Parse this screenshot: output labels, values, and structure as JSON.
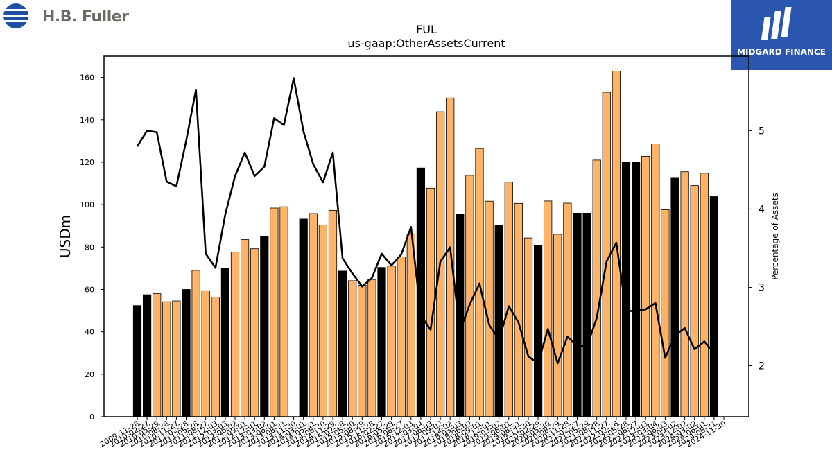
{
  "brand": {
    "company_name": "H.B. Fuller",
    "partner_name": "MIDGARD FINANCE"
  },
  "chart_data": {
    "type": "bar",
    "title": "FUL",
    "subtitle": "us-gaap:OtherAssetsCurrent",
    "ylabel": "USDm",
    "y2label": "Percentage of Assets",
    "ylim": [
      0,
      170
    ],
    "y2lim": [
      1.35,
      5.95
    ],
    "yticks": [
      0,
      20,
      40,
      60,
      80,
      100,
      120,
      140,
      160
    ],
    "y2ticks": [
      2,
      3,
      4,
      5
    ],
    "grid": false,
    "colors": {
      "annual": "#000000",
      "quarterly": "#ffb366",
      "line": "#000000"
    },
    "categories": [
      "2009-11-28",
      "2010-02-27",
      "2010-05-29",
      "2010-08-28",
      "2010-11-27",
      "2011-02-26",
      "2011-05-28",
      "2011-08-27",
      "2011-12-03",
      "2012-03-03",
      "2012-06-02",
      "2012-09-01",
      "2012-12-01",
      "2013-03-02",
      "2013-06-01",
      "2013-08-31",
      "2013-11-30",
      "2014-03-01",
      "2014-05-31",
      "2014-08-30",
      "2014-11-29",
      "2015-02-28",
      "2015-05-30",
      "2015-08-29",
      "2015-11-28",
      "2016-02-27",
      "2016-05-28",
      "2016-08-27",
      "2016-12-03",
      "2017-03-04",
      "2017-06-03",
      "2017-09-02",
      "2017-12-02",
      "2018-03-03",
      "2018-06-02",
      "2018-09-01",
      "2018-12-01",
      "2019-03-02",
      "2019-06-01",
      "2019-08-31",
      "2019-11-30",
      "2020-02-29",
      "2020-05-30",
      "2020-08-29",
      "2020-11-28",
      "2021-02-27",
      "2021-05-29",
      "2021-08-28",
      "2021-11-27",
      "2022-02-26",
      "2022-05-28",
      "2022-08-27",
      "2022-12-03",
      "2023-03-04",
      "2023-06-03",
      "2023-09-02",
      "2023-12-02",
      "2024-03-02",
      "2024-06-01",
      "2024-08-31",
      "2024-11-30"
    ],
    "tick_labels": [
      "2009-11-28",
      "2010-02-27",
      "2010-05-29",
      "2010-08-28",
      "2010-11-27",
      "2011-02-26",
      "2011-05-28",
      "2011-08-27",
      "2011-12-03",
      "2012-03-03",
      "2012-06-02",
      "2012-09-01",
      "2012-12-01",
      "2013-03-02",
      "2013-06-01",
      "2013-08-31",
      "2013-11-30",
      "2014-03-01",
      "2014-05-31",
      "2014-08-30",
      "2014-11-29",
      "2015-02-28",
      "2015-05-30",
      "2015-08-29",
      "2015-11-28",
      "2016-02-27",
      "2016-05-28",
      "2016-08-27",
      "2016-12-03",
      "2017-03-04",
      "2017-06-03",
      "2017-09-02",
      "2017-12-02",
      "2018-03-03",
      "2018-06-02",
      "2018-09-01",
      "2018-12-01",
      "2019-03-02",
      "2019-06-01",
      "2019-08-31",
      "2019-11-30",
      "2020-02-29",
      "2020-05-30",
      "2020-08-29",
      "2020-11-28",
      "2021-02-27",
      "2021-05-29",
      "2021-08-28",
      "2021-11-27",
      "2022-02-26",
      "2022-05-28",
      "2022-08-27",
      "2022-12-03",
      "2023-03-04",
      "2023-06-03",
      "2023-09-02",
      "2023-12-02",
      "2024-03-02",
      "2024-06-01",
      "2024-08-31",
      "2024-11-30"
    ],
    "series": [
      {
        "values": [
          52.4,
          57.5,
          58.0,
          54.2,
          54.6,
          60.0,
          69.0,
          59.4,
          56.4,
          70.0,
          77.6,
          83.5,
          79.2,
          85.0,
          98.4,
          99.0,
          null,
          93.2,
          95.8,
          90.4,
          97.3,
          68.7,
          64.1,
          62.0,
          64.7,
          70.4,
          71.0,
          75.4,
          86.2,
          117.3,
          107.8,
          143.8,
          150.3,
          95.4,
          113.8,
          126.5,
          101.6,
          90.4,
          110.6,
          100.6,
          84.3,
          80.9,
          101.7,
          86.0,
          100.7,
          96.0,
          96.0,
          121.0,
          153.0,
          163.0,
          120.0,
          120.0,
          122.8,
          128.6,
          97.6,
          112.5,
          115.5,
          109.0,
          114.8,
          103.8,
          null
        ],
        "kind": [
          "annual",
          "annual",
          "quarterly",
          "quarterly",
          "quarterly",
          "annual",
          "quarterly",
          "quarterly",
          "quarterly",
          "annual",
          "quarterly",
          "quarterly",
          "quarterly",
          "annual",
          "quarterly",
          "quarterly",
          "annual",
          "annual",
          "quarterly",
          "quarterly",
          "quarterly",
          "annual",
          "quarterly",
          "quarterly",
          "quarterly",
          "annual",
          "quarterly",
          "quarterly",
          "quarterly",
          "annual",
          "quarterly",
          "quarterly",
          "quarterly",
          "annual",
          "quarterly",
          "quarterly",
          "quarterly",
          "annual",
          "quarterly",
          "quarterly",
          "quarterly",
          "annual",
          "quarterly",
          "quarterly",
          "quarterly",
          "annual",
          "annual",
          "quarterly",
          "quarterly",
          "quarterly",
          "annual",
          "annual",
          "quarterly",
          "quarterly",
          "quarterly",
          "annual",
          "quarterly",
          "quarterly",
          "quarterly",
          "annual",
          "annual"
        ]
      },
      {
        "axis": "y2",
        "type": "line",
        "values": [
          4.8,
          5.0,
          4.98,
          4.35,
          4.29,
          4.87,
          5.52,
          3.43,
          3.25,
          3.93,
          4.42,
          4.72,
          4.42,
          4.54,
          5.16,
          5.07,
          5.67,
          4.99,
          4.57,
          4.34,
          4.72,
          3.37,
          3.18,
          3.01,
          3.12,
          3.43,
          3.28,
          3.42,
          3.77,
          2.64,
          2.46,
          3.33,
          3.51,
          2.44,
          2.78,
          3.05,
          2.52,
          2.33,
          2.76,
          2.55,
          2.12,
          2.03,
          2.47,
          2.03,
          2.37,
          2.26,
          2.25,
          2.61,
          3.33,
          3.57,
          2.7,
          2.7,
          2.72,
          2.8,
          2.1,
          2.39,
          2.48,
          2.21,
          2.31,
          2.16,
          null
        ]
      }
    ]
  }
}
